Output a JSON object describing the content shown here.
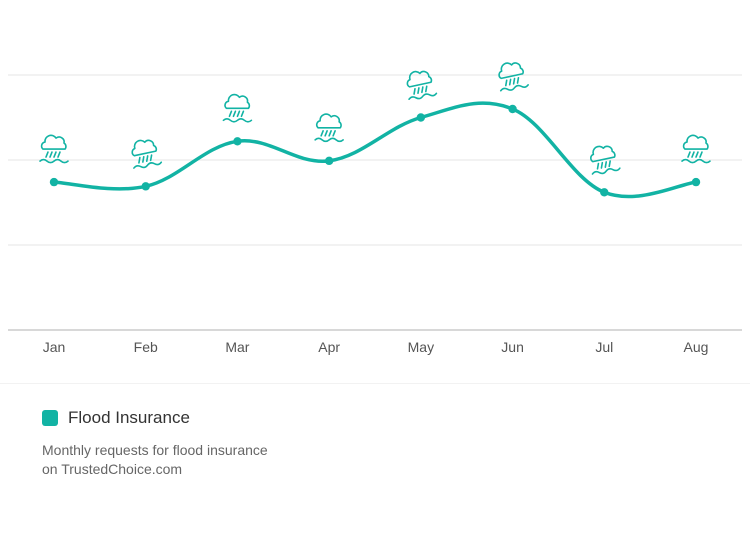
{
  "chart_data": {
    "type": "line",
    "categories": [
      "Jan",
      "Feb",
      "Mar",
      "Apr",
      "May",
      "Jun",
      "Jul",
      "Aug"
    ],
    "series": [
      {
        "name": "Flood Insurance",
        "values": [
          1.74,
          1.69,
          2.22,
          1.99,
          2.5,
          2.6,
          1.62,
          1.74
        ]
      }
    ],
    "ylim": [
      0,
      3
    ],
    "grid": true,
    "legend_position": "bottom-left",
    "marker_icon": "rain-flood-icon"
  },
  "legend": {
    "label": "Flood Insurance"
  },
  "caption": "Monthly requests for flood insurance on TrustedChoice.com",
  "colors": {
    "series": "#12b3a4",
    "grid": "#e6e6e6",
    "axis": "#cccccc",
    "tick_text": "#555555"
  }
}
